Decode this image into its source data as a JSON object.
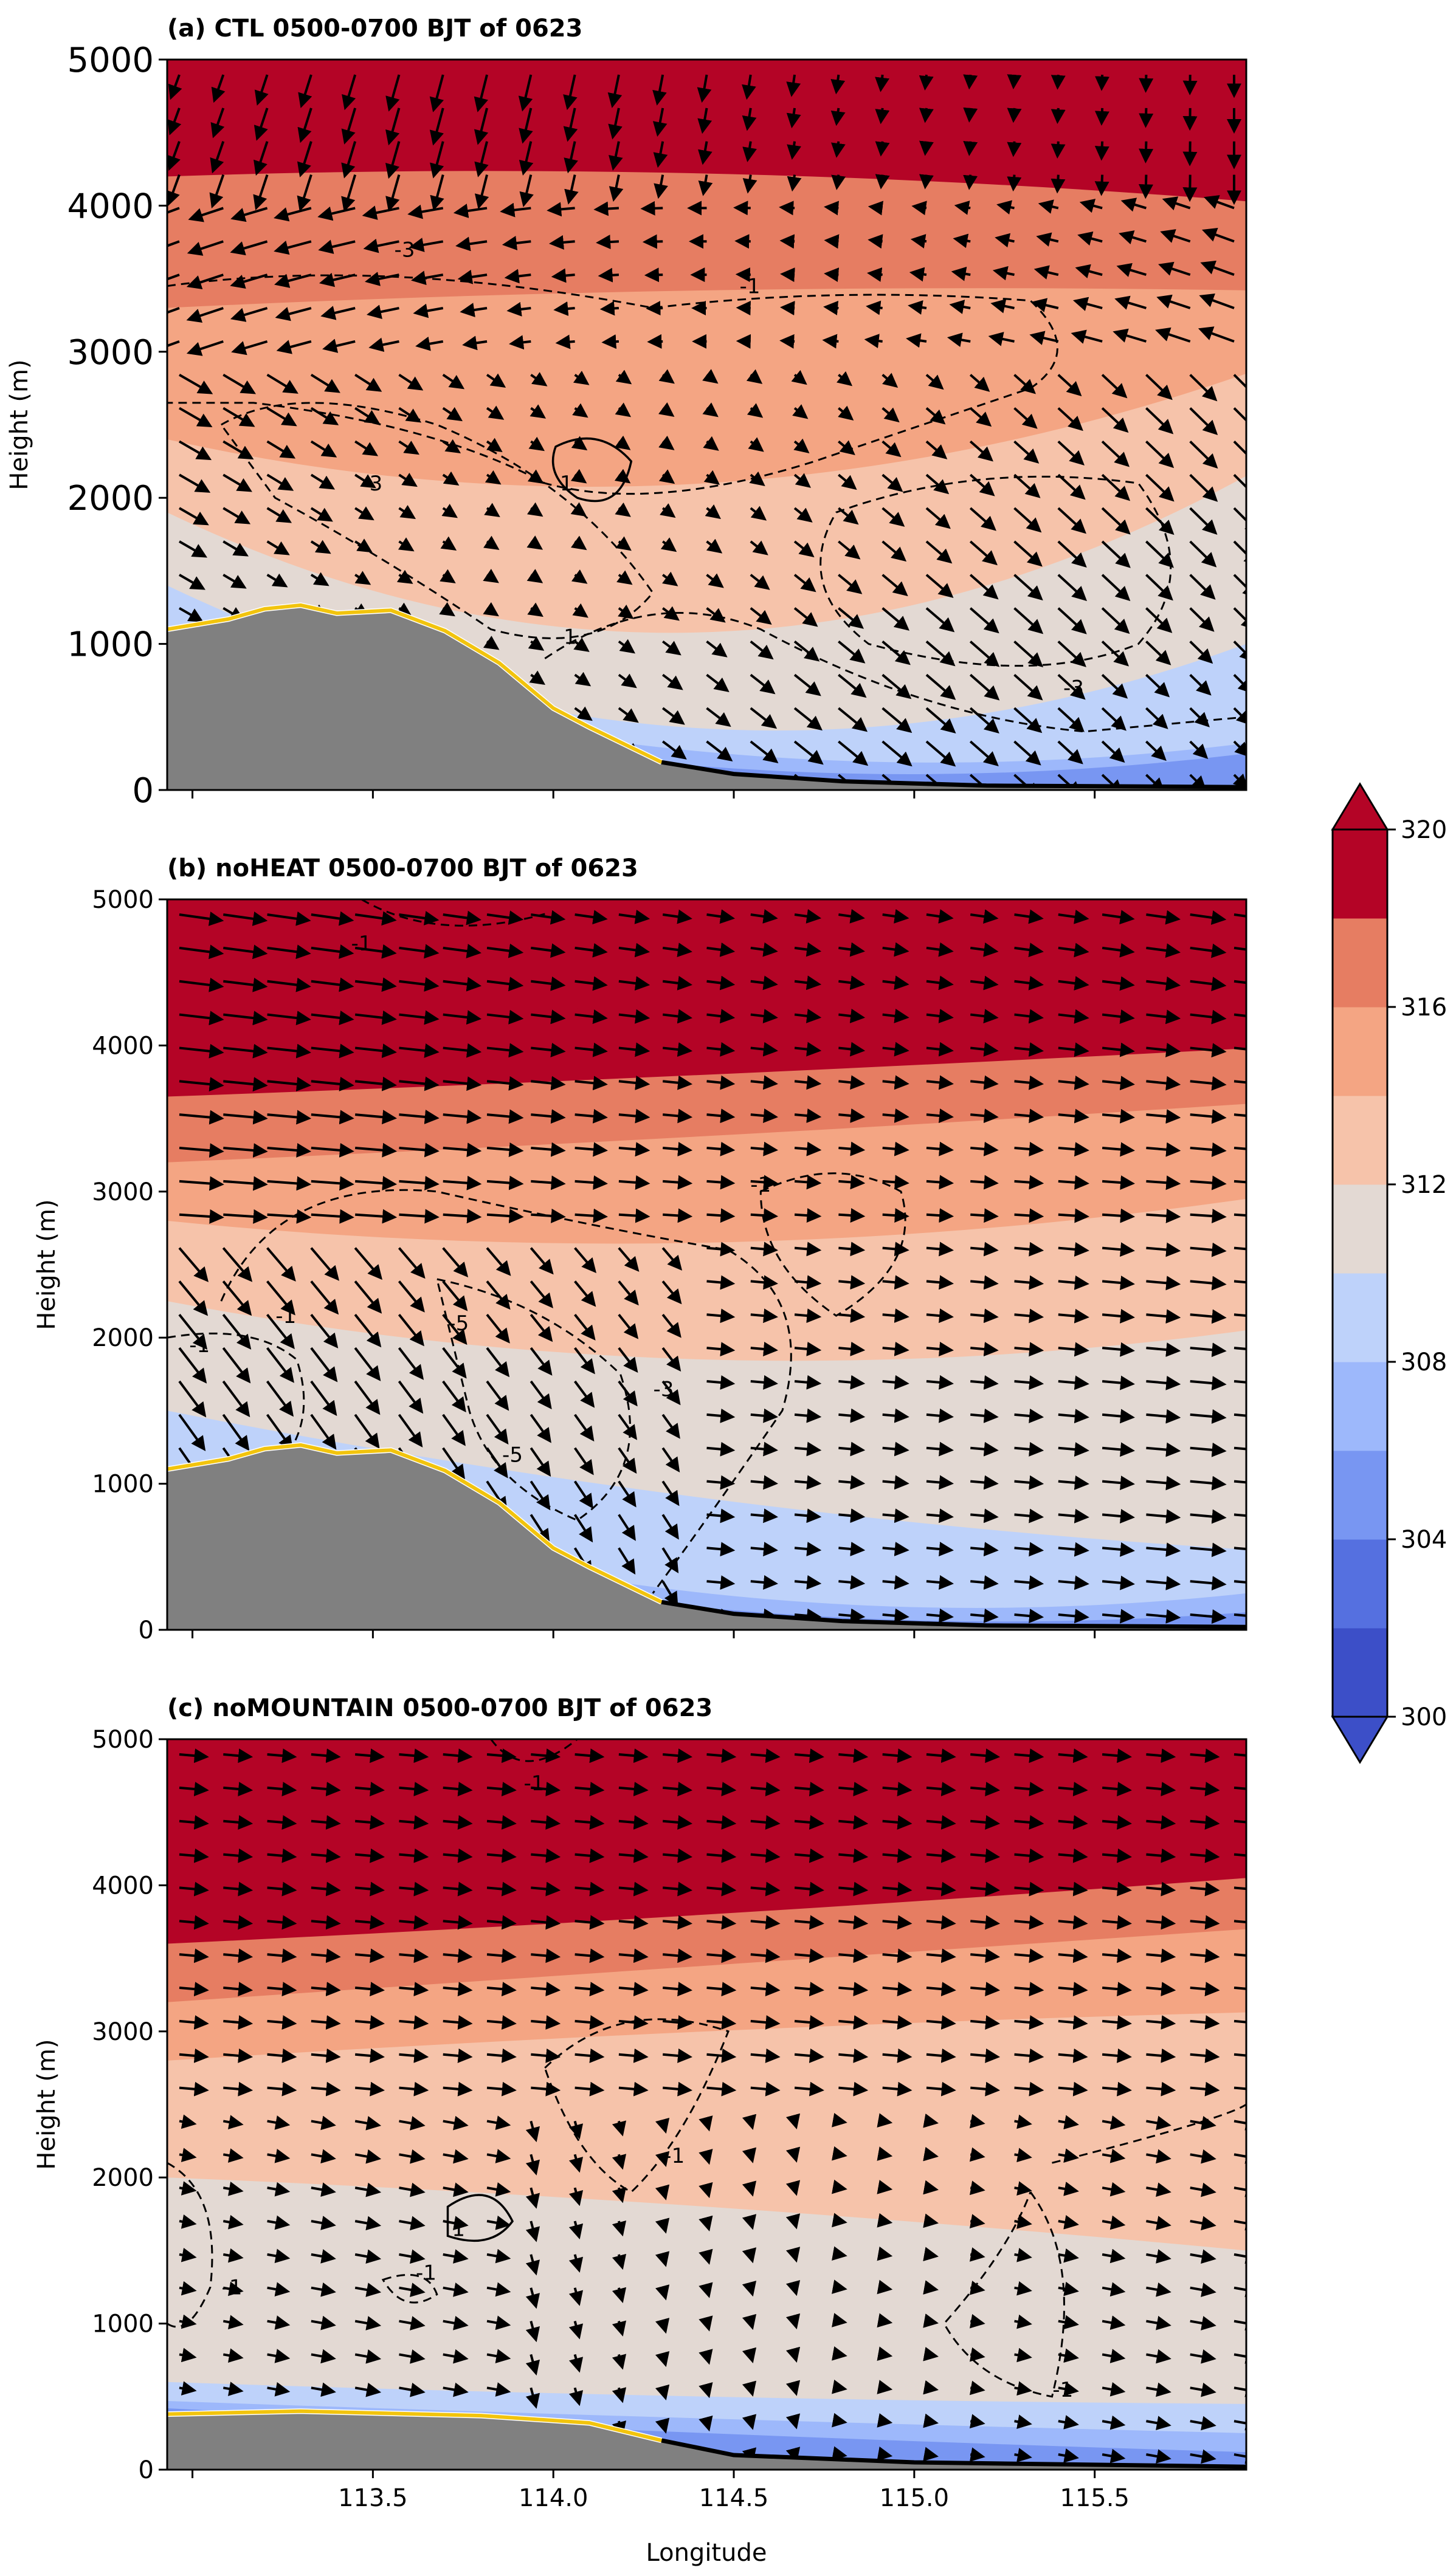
{
  "chart_data": {
    "type": "cross-section (filled contour + wind vectors)",
    "shared_xaxis": {
      "label": "Longitude",
      "range": [
        112.93,
        115.92
      ],
      "ticks": [
        113.5,
        114.0,
        114.5,
        115.0,
        115.5
      ],
      "tick_labels": [
        "113.5",
        "114.0",
        "114.5",
        "115.0",
        "115.5"
      ]
    },
    "colorbar": {
      "levels": [
        300,
        302,
        304,
        306,
        308,
        310,
        312,
        314,
        316,
        318,
        320
      ],
      "tick_labels": [
        "300",
        "304",
        "308",
        "312",
        "316",
        "320"
      ],
      "colors": [
        "#3c4fc8",
        "#5570e0",
        "#7896f2",
        "#9db8fb",
        "#bed2fa",
        "#e3d9d3",
        "#f6c3aa",
        "#f4a583",
        "#e67d62",
        "#b40426"
      ],
      "extend": "both"
    },
    "panels": [
      {
        "title": "(a) CTL 0500-0700 BJT of 0623",
        "ylabel": "Height (m)",
        "ylim": [
          0,
          5000
        ],
        "yticks": [
          "0",
          "1000",
          "2000",
          "3000",
          "4000",
          "5000"
        ],
        "terrain": [
          [
            112.93,
            1100
          ],
          [
            113.1,
            1170
          ],
          [
            113.2,
            1240
          ],
          [
            113.3,
            1265
          ],
          [
            113.4,
            1210
          ],
          [
            113.55,
            1230
          ],
          [
            113.7,
            1090
          ],
          [
            113.85,
            870
          ],
          [
            114.0,
            560
          ],
          [
            114.1,
            430
          ],
          [
            114.3,
            190
          ],
          [
            114.5,
            110
          ],
          [
            114.8,
            60
          ],
          [
            115.2,
            30
          ],
          [
            115.92,
            20
          ]
        ],
        "theta_layers": [
          {
            "level": 318,
            "height": [
              4680,
              4680,
              4680
            ]
          },
          {
            "level": 316,
            "height": [
              4200,
              4220,
              4030
            ]
          },
          {
            "level": 314,
            "height": [
              3300,
              3420,
              3420
            ]
          },
          {
            "level": 312,
            "height": [
              2400,
              2100,
              2850
            ]
          },
          {
            "level": 310,
            "height": [
              1900,
              1080,
              2150
            ]
          },
          {
            "level": 308,
            "height": [
              1400,
              420,
              1000
            ]
          },
          {
            "level": 306,
            "height": [
              1000,
              260,
              320
            ]
          },
          {
            "level": 304,
            "height": [
              800,
              160,
              250
            ]
          }
        ],
        "contour_labels": [
          "-1",
          "-3",
          "1",
          "-1",
          "-3",
          "-3"
        ],
        "wind": "strong downslope northwesterly flow in lee of mountain"
      },
      {
        "title": "(b) noHEAT 0500-0700 BJT of 0623",
        "ylabel": "Height (m)",
        "ylim": [
          0,
          5000
        ],
        "yticks": [
          "0",
          "1000",
          "2000",
          "3000",
          "4000",
          "5000"
        ],
        "terrain": [
          [
            112.93,
            1100
          ],
          [
            113.1,
            1170
          ],
          [
            113.2,
            1240
          ],
          [
            113.3,
            1265
          ],
          [
            113.4,
            1210
          ],
          [
            113.55,
            1230
          ],
          [
            113.7,
            1090
          ],
          [
            113.85,
            870
          ],
          [
            114.0,
            560
          ],
          [
            114.1,
            430
          ],
          [
            114.3,
            190
          ],
          [
            114.5,
            110
          ],
          [
            114.8,
            60
          ],
          [
            115.2,
            30
          ],
          [
            115.92,
            20
          ]
        ],
        "theta_layers": [
          {
            "level": 318,
            "height": [
              4120,
              4300,
              4520
            ]
          },
          {
            "level": 316,
            "height": [
              3650,
              3800,
              3980
            ]
          },
          {
            "level": 314,
            "height": [
              3200,
              3380,
              3600
            ]
          },
          {
            "level": 312,
            "height": [
              2800,
              2650,
              2950
            ]
          },
          {
            "level": 310,
            "height": [
              2250,
              1850,
              2050
            ]
          },
          {
            "level": 308,
            "height": [
              1500,
              900,
              550
            ]
          },
          {
            "level": 306,
            "height": [
              1050,
              250,
              250
            ]
          },
          {
            "level": 304,
            "height": [
              800,
              150,
              120
            ]
          }
        ],
        "contour_labels": [
          "-1",
          "-1",
          "-1",
          "-5",
          "-3",
          "-5",
          "-1"
        ],
        "wind": "downslope flow near mountain, westerly flow aloft"
      },
      {
        "title": "(c) noMOUNTAIN 0500-0700 BJT of 0623",
        "ylabel": "Height (m)",
        "ylim": [
          0,
          5000
        ],
        "yticks": [
          "0",
          "1000",
          "2000",
          "3000",
          "4000",
          "5000"
        ],
        "terrain": [
          [
            112.93,
            380
          ],
          [
            113.3,
            400
          ],
          [
            113.8,
            370
          ],
          [
            114.1,
            320
          ],
          [
            114.3,
            200
          ],
          [
            114.5,
            100
          ],
          [
            115.0,
            50
          ],
          [
            115.92,
            20
          ]
        ],
        "theta_layers": [
          {
            "level": 318,
            "height": [
              4050,
              4300,
              4600
            ]
          },
          {
            "level": 316,
            "height": [
              3600,
              3800,
              4050
            ]
          },
          {
            "level": 314,
            "height": [
              3200,
              3450,
              3700
            ]
          },
          {
            "level": 312,
            "height": [
              2800,
              3000,
              3130
            ]
          },
          {
            "level": 310,
            "height": [
              2000,
              1800,
              1500
            ]
          },
          {
            "level": 308,
            "height": [
              600,
              500,
              450
            ]
          },
          {
            "level": 306,
            "height": [
              470,
              350,
              250
            ]
          },
          {
            "level": 304,
            "height": [
              420,
              250,
              120
            ]
          }
        ],
        "contour_labels": [
          "-1",
          "-1",
          "1",
          "-1",
          "-1",
          "-1"
        ],
        "wind": "weak westerly flow, no mountain"
      }
    ]
  }
}
